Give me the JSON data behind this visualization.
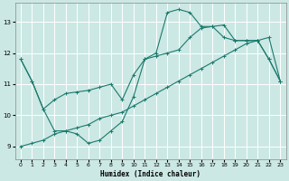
{
  "xlabel": "Humidex (Indice chaleur)",
  "bg_color": "#cce8e4",
  "grid_color": "#ffffff",
  "line_color": "#1a7a6e",
  "ylim": [
    8.6,
    13.6
  ],
  "xlim": [
    -0.5,
    23.5
  ],
  "yticks": [
    9,
    10,
    11,
    12,
    13
  ],
  "xticks": [
    0,
    1,
    2,
    3,
    4,
    5,
    6,
    7,
    8,
    9,
    10,
    11,
    12,
    13,
    14,
    15,
    16,
    17,
    18,
    19,
    20,
    21,
    22,
    23
  ],
  "series1_x": [
    0,
    1,
    2,
    3,
    4,
    5,
    6,
    7,
    8,
    9,
    10,
    11,
    12,
    13,
    14,
    15,
    16,
    17,
    18,
    19,
    20,
    21,
    22,
    23
  ],
  "series1_y": [
    11.8,
    11.1,
    10.2,
    9.5,
    9.5,
    9.4,
    9.1,
    9.2,
    9.5,
    9.8,
    10.6,
    11.8,
    12.0,
    13.3,
    13.4,
    13.3,
    12.85,
    12.85,
    12.5,
    12.4,
    12.4,
    12.4,
    11.8,
    11.1
  ],
  "series2_x": [
    0,
    1,
    2,
    3,
    4,
    5,
    6,
    7,
    8,
    9,
    10,
    11,
    12,
    13,
    14,
    15,
    16,
    17,
    18,
    19,
    20,
    21,
    22,
    23
  ],
  "series2_y": [
    9.0,
    9.1,
    9.2,
    9.4,
    9.5,
    9.6,
    9.7,
    9.9,
    10.0,
    10.1,
    10.3,
    10.5,
    10.7,
    10.9,
    11.1,
    11.3,
    11.5,
    11.7,
    11.9,
    12.1,
    12.3,
    12.4,
    12.5,
    11.1
  ],
  "series3_x": [
    0,
    1,
    2,
    3,
    4,
    5,
    6,
    7,
    8,
    9,
    10,
    11,
    12,
    13,
    14,
    15,
    16,
    17,
    18,
    19,
    20,
    21,
    22,
    23
  ],
  "series3_y": [
    11.8,
    11.1,
    10.2,
    10.5,
    10.7,
    10.75,
    10.8,
    10.9,
    11.0,
    10.5,
    11.3,
    11.8,
    11.9,
    12.0,
    12.1,
    12.5,
    12.8,
    12.85,
    12.9,
    12.4,
    12.4,
    12.4,
    11.8,
    11.1
  ]
}
